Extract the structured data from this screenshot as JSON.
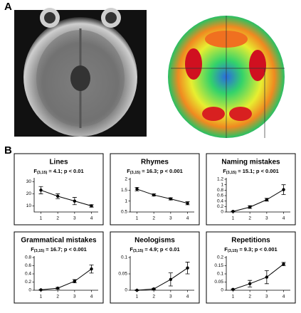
{
  "panels": [
    "A",
    "B"
  ],
  "chart_data": [
    {
      "type": "line",
      "title": "Lines",
      "stat_symbol": "F",
      "stat_df": "(3,15)",
      "stat_text": " = 4.1; p < 0.01",
      "x": [
        1,
        2,
        3,
        4
      ],
      "xlim": [
        0.6,
        4.4
      ],
      "xticks": [
        1,
        2,
        3,
        4
      ],
      "values": [
        23,
        18,
        14,
        10
      ],
      "errors": [
        3,
        2,
        3,
        1
      ],
      "color": "#000000",
      "ylim": [
        5,
        32
      ],
      "yticks": [
        10,
        20,
        30
      ]
    },
    {
      "type": "line",
      "title": "Rhymes",
      "stat_symbol": "F",
      "stat_df": "(3,15)",
      "stat_text": " = 16.3; p < 0.001",
      "x": [
        1,
        2,
        3,
        4
      ],
      "xlim": [
        0.6,
        4.4
      ],
      "xticks": [
        1,
        2,
        3,
        4
      ],
      "values": [
        1.55,
        1.28,
        1.1,
        0.9
      ],
      "errors": [
        0.08,
        0.05,
        0.05,
        0.07
      ],
      "color": "#000000",
      "ylim": [
        0.5,
        2
      ],
      "yticks": [
        0.5,
        1,
        1.5,
        2
      ]
    },
    {
      "type": "line",
      "title": "Naming mistakes",
      "stat_symbol": "F",
      "stat_df": "(3,15)",
      "stat_text": " = 15.1; p < 0.001",
      "x": [
        1,
        2,
        3,
        4
      ],
      "xlim": [
        0.6,
        4.4
      ],
      "xticks": [
        1,
        2,
        3,
        4
      ],
      "values": [
        0.02,
        0.18,
        0.45,
        0.82
      ],
      "errors": [
        0.01,
        0.05,
        0.05,
        0.18
      ],
      "color": "#000000",
      "ylim": [
        0,
        1.2
      ],
      "yticks": [
        0,
        0.2,
        0.4,
        0.6,
        0.8,
        1,
        1.2
      ]
    },
    {
      "type": "line",
      "title": "Grammatical mistakes",
      "stat_symbol": "F",
      "stat_df": "(3,15)",
      "stat_text": " = 16.7; p < 0.001",
      "x": [
        1,
        2,
        3,
        4
      ],
      "xlim": [
        0.6,
        4.4
      ],
      "xticks": [
        1,
        2,
        3,
        4
      ],
      "values": [
        0.01,
        0.05,
        0.22,
        0.52
      ],
      "errors": [
        0.005,
        0.02,
        0.04,
        0.1
      ],
      "color": "#000000",
      "ylim": [
        0,
        0.8
      ],
      "yticks": [
        0,
        0.2,
        0.4,
        0.6,
        0.8
      ]
    },
    {
      "type": "line",
      "title": "Neologisms",
      "stat_symbol": "F",
      "stat_df": "(3,15)",
      "stat_text": " = 4.9; p < 0.01",
      "x": [
        1,
        2,
        3,
        4
      ],
      "xlim": [
        0.6,
        4.4
      ],
      "xticks": [
        1,
        2,
        3,
        4
      ],
      "values": [
        0,
        0.004,
        0.033,
        0.068
      ],
      "errors": [
        0.001,
        0.002,
        0.02,
        0.018
      ],
      "color": "#000000",
      "ylim": [
        0,
        0.1
      ],
      "yticks": [
        0,
        0.05,
        0.1
      ]
    },
    {
      "type": "line",
      "title": "Repetitions",
      "stat_symbol": "F",
      "stat_df": "(3,15)",
      "stat_text": " = 9.3; p < 0.001",
      "x": [
        1,
        2,
        3,
        4
      ],
      "xlim": [
        0.6,
        4.4
      ],
      "xticks": [
        1,
        2,
        3,
        4
      ],
      "values": [
        0.005,
        0.04,
        0.08,
        0.16
      ],
      "errors": [
        0.003,
        0.02,
        0.04,
        0.01
      ],
      "color": "#000000",
      "ylim": [
        0,
        0.2
      ],
      "yticks": [
        0,
        0.05,
        0.1,
        0.15,
        0.2
      ]
    }
  ]
}
